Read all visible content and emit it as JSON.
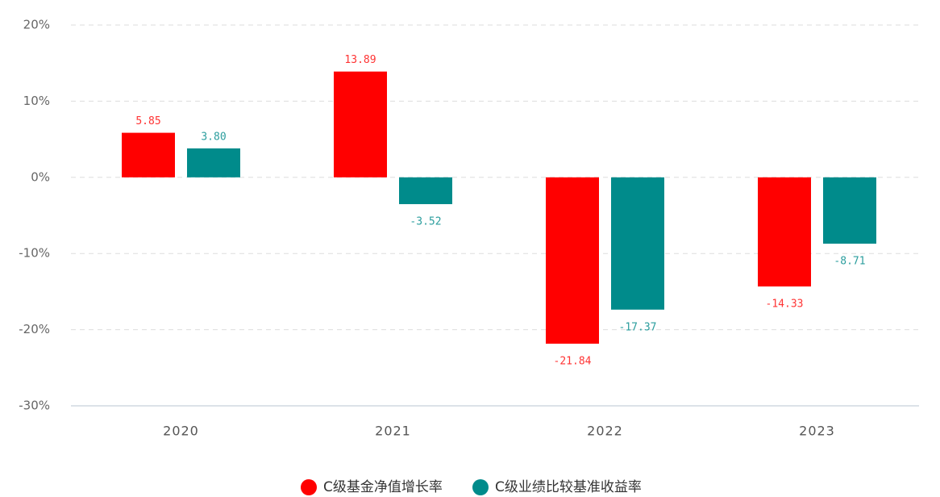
{
  "chart_data": {
    "type": "bar",
    "categories": [
      "2020",
      "2021",
      "2022",
      "2023"
    ],
    "series": [
      {
        "name": "C级基金净值增长率",
        "color": "#ff0000",
        "values": [
          5.85,
          13.89,
          -21.84,
          -14.33
        ],
        "value_labels": [
          "5.85",
          "13.89",
          "-21.84",
          "-14.33"
        ]
      },
      {
        "name": "C级业绩比较基准收益率",
        "color": "#008b8b",
        "values": [
          3.8,
          -3.52,
          -17.37,
          -8.71
        ],
        "value_labels": [
          "3.80",
          "-3.52",
          "-17.37",
          "-8.71"
        ]
      }
    ],
    "ylim": [
      -30,
      20
    ],
    "yticks": [
      {
        "value": -30,
        "label": "-30%"
      },
      {
        "value": -20,
        "label": "-20%"
      },
      {
        "value": -10,
        "label": "-10%"
      },
      {
        "value": 0,
        "label": "0%"
      },
      {
        "value": 10,
        "label": "10%"
      },
      {
        "value": 20,
        "label": "20%"
      }
    ],
    "grid": true,
    "legend": "bottom"
  }
}
